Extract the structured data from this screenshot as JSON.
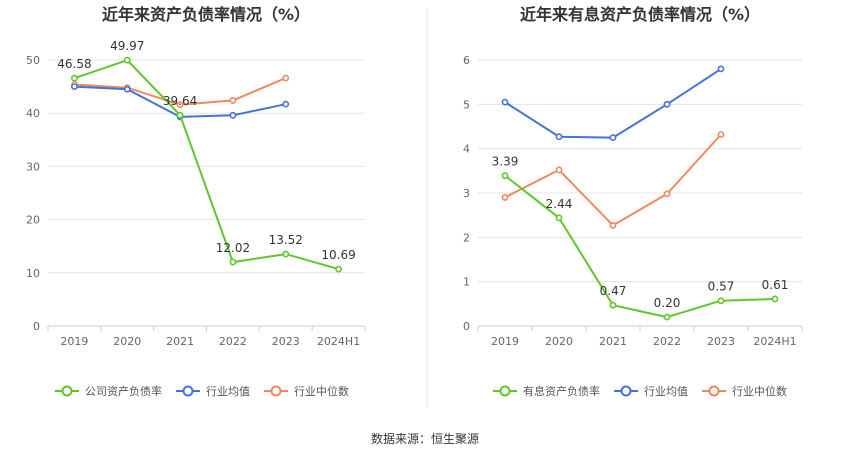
{
  "source_label": "数据来源：恒生聚源",
  "colors": {
    "company": "#5ec72a",
    "avg": "#4472d8",
    "median": "#f0885e",
    "grid": "#e3e3e3",
    "axis_text": "#666666",
    "title_text": "#333333",
    "divider": "#e6e6e6"
  },
  "chart_data": [
    {
      "type": "line",
      "title": "近年来资产负债率情况（%）",
      "categories": [
        "2019",
        "2020",
        "2021",
        "2022",
        "2023",
        "2024H1"
      ],
      "ylim": [
        0,
        50
      ],
      "yticks": [
        0,
        10,
        20,
        30,
        40,
        50
      ],
      "xlabel": "",
      "ylabel": "",
      "grid": true,
      "legend_position": "bottom",
      "series": [
        {
          "key": "company",
          "name": "公司资产负债率",
          "values": [
            46.58,
            49.97,
            39.64,
            12.02,
            13.52,
            10.69
          ],
          "labels": [
            "46.58",
            "49.97",
            "39.64",
            "12.02",
            "13.52",
            "10.69"
          ]
        },
        {
          "key": "avg",
          "name": "行业均值",
          "values": [
            45.0,
            44.5,
            39.3,
            39.6,
            41.7,
            null
          ]
        },
        {
          "key": "median",
          "name": "行业中位数",
          "values": [
            45.4,
            44.8,
            41.6,
            42.4,
            46.6,
            null
          ]
        }
      ]
    },
    {
      "type": "line",
      "title": "近年来有息资产负债率情况（%）",
      "categories": [
        "2019",
        "2020",
        "2021",
        "2022",
        "2023",
        "2024H1"
      ],
      "ylim": [
        0,
        6
      ],
      "yticks": [
        0,
        1,
        2,
        3,
        4,
        5,
        6
      ],
      "xlabel": "",
      "ylabel": "",
      "grid": true,
      "legend_position": "bottom",
      "series": [
        {
          "key": "company",
          "name": "有息资产负债率",
          "values": [
            3.39,
            2.44,
            0.47,
            0.2,
            0.57,
            0.61
          ],
          "labels": [
            "3.39",
            "2.44",
            "0.47",
            "0.20",
            "0.57",
            "0.61"
          ]
        },
        {
          "key": "avg",
          "name": "行业均值",
          "values": [
            5.05,
            4.27,
            4.25,
            5.0,
            5.8,
            null
          ]
        },
        {
          "key": "median",
          "name": "行业中位数",
          "values": [
            2.9,
            3.52,
            2.27,
            2.98,
            4.32,
            null
          ]
        }
      ]
    }
  ]
}
